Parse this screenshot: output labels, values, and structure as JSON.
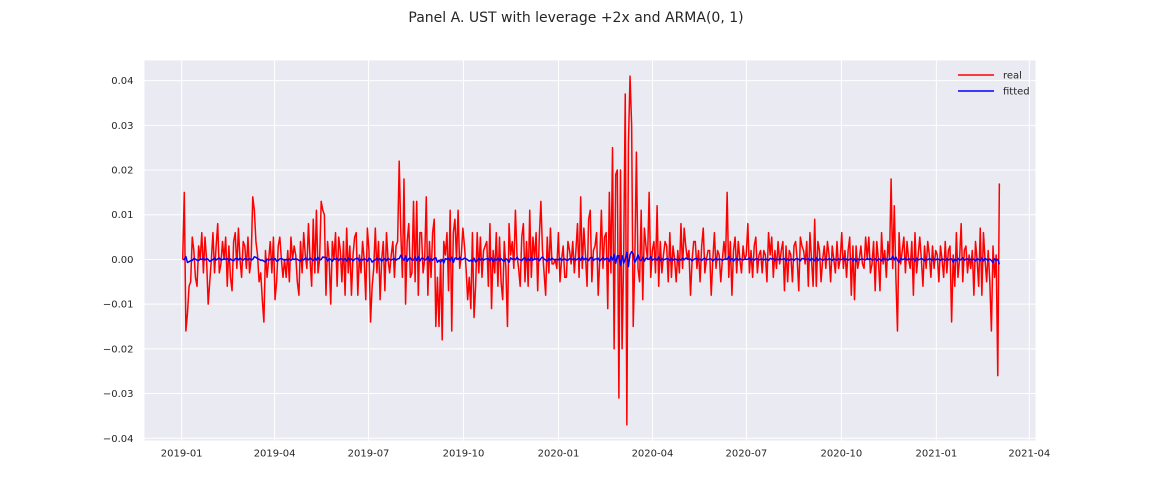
{
  "chart_data": {
    "type": "line",
    "title": "Panel A. UST with leverage +2x and ARMA(0, 1)",
    "xlabel": "",
    "ylabel": "",
    "x_ticks": [
      "2019-01",
      "2019-04",
      "2019-07",
      "2019-10",
      "2020-01",
      "2020-04",
      "2020-07",
      "2020-10",
      "2021-01",
      "2021-04"
    ],
    "y_ticks": [
      "0.04",
      "0.03",
      "0.02",
      "0.01",
      "0.00",
      "−0.01",
      "−0.02",
      "−0.03",
      "−0.04"
    ],
    "xlim": [
      "2018-11-26",
      "2021-04-07"
    ],
    "ylim": [
      -0.0405,
      0.0445
    ],
    "grid": true,
    "background": "#eaeaf2",
    "legend_position": "top-right",
    "date_range": [
      "2019-01-02",
      "2021-03-03"
    ],
    "series": [
      {
        "name": "real",
        "color": "#ff0000",
        "values": [
          0.0,
          0.015,
          -0.016,
          -0.012,
          -0.006,
          -0.005,
          0.005,
          0.002,
          -0.004,
          -0.006,
          0.003,
          0.0,
          0.006,
          -0.003,
          0.005,
          0.0,
          -0.01,
          -0.005,
          0.0,
          0.006,
          -0.003,
          0.003,
          0.008,
          -0.003,
          -0.001,
          0.004,
          0.0,
          0.005,
          -0.006,
          0.003,
          -0.004,
          -0.007,
          0.004,
          0.006,
          -0.002,
          0.007,
          0.0,
          -0.004,
          0.004,
          0.003,
          -0.002,
          0.005,
          -0.003,
          0.0,
          0.014,
          0.011,
          0.004,
          0.001,
          -0.005,
          -0.003,
          -0.009,
          -0.014,
          0.002,
          -0.004,
          0.0,
          0.004,
          -0.003,
          0.005,
          -0.009,
          -0.005,
          0.003,
          0.005,
          0.0,
          -0.004,
          0.0,
          -0.004,
          0.002,
          -0.005,
          0.005,
          0.0,
          0.003,
          0.001,
          -0.005,
          -0.008,
          0.004,
          -0.003,
          0.006,
          0.001,
          -0.002,
          0.008,
          0.0,
          -0.006,
          0.009,
          -0.003,
          0.011,
          -0.003,
          0.0,
          0.013,
          0.011,
          0.01,
          -0.008,
          0.004,
          0.0,
          -0.01,
          0.004,
          0.0,
          0.006,
          -0.006,
          0.005,
          0.002,
          -0.005,
          0.004,
          -0.008,
          0.007,
          -0.003,
          0.003,
          -0.008,
          0.001,
          0.005,
          0.006,
          -0.008,
          0.001,
          -0.003,
          0.004,
          0.0,
          -0.009,
          0.007,
          0.002,
          -0.014,
          -0.006,
          -0.002,
          0.007,
          -0.003,
          0.004,
          -0.009,
          0.0,
          0.004,
          -0.007,
          0.006,
          0.0,
          -0.003,
          0.001,
          0.004,
          -0.004,
          0.003,
          0.004,
          0.022,
          0.006,
          -0.004,
          0.018,
          -0.01,
          0.004,
          0.008,
          -0.004,
          -0.003,
          0.013,
          -0.005,
          0.013,
          -0.008,
          0.006,
          0.006,
          -0.003,
          0.0,
          0.014,
          -0.008,
          0.004,
          -0.004,
          0.006,
          0.009,
          -0.015,
          -0.004,
          -0.015,
          0.0,
          -0.018,
          0.004,
          0.001,
          0.006,
          -0.007,
          0.011,
          -0.016,
          0.006,
          0.009,
          0.0,
          0.011,
          -0.002,
          0.001,
          0.007,
          0.003,
          -0.002,
          -0.009,
          -0.004,
          -0.011,
          0.006,
          -0.013,
          -0.006,
          0.006,
          -0.003,
          0.005,
          -0.004,
          0.002,
          0.003,
          0.004,
          -0.006,
          0.008,
          -0.011,
          0.002,
          -0.003,
          0.006,
          -0.006,
          0.005,
          -0.005,
          -0.009,
          0.004,
          -0.002,
          -0.015,
          0.008,
          0.001,
          0.004,
          -0.002,
          0.011,
          0.001,
          -0.002,
          -0.006,
          0.005,
          0.008,
          -0.005,
          0.004,
          -0.006,
          0.011,
          -0.004,
          0.005,
          0.0,
          0.006,
          -0.007,
          0.005,
          0.013,
          0.002,
          -0.003,
          -0.008,
          0.005,
          -0.003,
          0.007,
          -0.001,
          -0.001,
          0.0,
          -0.002,
          0.006,
          -0.005,
          0.0,
          0.003,
          -0.004,
          -0.004,
          0.004,
          0.002,
          -0.001,
          0.004,
          -0.003,
          0.002,
          0.008,
          -0.004,
          0.014,
          -0.002,
          0.007,
          0.001,
          -0.006,
          0.009,
          0.011,
          -0.005,
          0.002,
          0.003,
          0.006,
          -0.008,
          0.0,
          0.011,
          -0.002,
          0.005,
          0.006,
          -0.011,
          0.015,
          -0.003,
          0.025,
          -0.02,
          0.019,
          0.02,
          -0.031,
          0.02,
          -0.02,
          0.001,
          0.037,
          -0.037,
          0.026,
          0.041,
          0.03,
          -0.015,
          0.0,
          0.024,
          -0.002,
          -0.005,
          0.011,
          -0.009,
          0.007,
          0.003,
          0.0,
          0.015,
          -0.004,
          0.002,
          0.004,
          -0.003,
          0.012,
          -0.006,
          0.004,
          -0.003,
          0.001,
          0.004,
          0.003,
          -0.005,
          0.006,
          -0.004,
          0.003,
          0.0,
          -0.005,
          0.002,
          -0.003,
          0.008,
          -0.002,
          0.007,
          0.003,
          0.0,
          0.002,
          -0.008,
          0.0,
          0.004,
          0.004,
          -0.002,
          0.002,
          -0.005,
          0.003,
          0.007,
          -0.003,
          0.0,
          0.002,
          0.002,
          -0.008,
          0.0,
          0.006,
          -0.002,
          0.002,
          0.001,
          -0.005,
          0.0,
          0.004,
          0.0,
          0.015,
          -0.004,
          0.004,
          -0.008,
          0.002,
          0.005,
          -0.003,
          0.004,
          0.0,
          -0.003,
          0.003,
          0.0,
          0.001,
          0.008,
          -0.003,
          0.002,
          -0.004,
          0.003,
          0.005,
          -0.003,
          0.001,
          0.002,
          -0.003,
          0.002,
          0.001,
          -0.005,
          0.006,
          0.001,
          0.005,
          -0.004,
          0.002,
          -0.002,
          0.004,
          -0.001,
          0.002,
          0.004,
          -0.007,
          0.003,
          -0.005,
          0.002,
          0.001,
          -0.005,
          0.003,
          0.004,
          0.0,
          -0.007,
          0.005,
          0.003,
          0.002,
          -0.001,
          0.004,
          -0.006,
          0.006,
          0.0,
          -0.006,
          0.009,
          -0.006,
          0.004,
          0.002,
          -0.005,
          0.0,
          0.003,
          -0.002,
          0.004,
          0.001,
          -0.005,
          0.003,
          0.0,
          -0.003,
          0.004,
          -0.002,
          0.0,
          0.006,
          -0.002,
          0.002,
          -0.004,
          0.002,
          0.005,
          -0.008,
          0.003,
          -0.009,
          0.003,
          -0.002,
          0.0,
          0.003,
          -0.001,
          -0.002,
          0.005,
          0.0,
          0.005,
          -0.003,
          -0.001,
          0.004,
          -0.007,
          0.004,
          0.0,
          -0.007,
          0.006,
          -0.001,
          0.002,
          -0.004,
          0.004,
          0.0,
          0.018,
          -0.002,
          0.012,
          -0.004,
          -0.016,
          0.006,
          -0.001,
          0.002,
          0.005,
          -0.003,
          0.004,
          0.0,
          -0.002,
          0.004,
          -0.008,
          0.006,
          -0.003,
          0.001,
          0.005,
          0.0,
          -0.006,
          0.003,
          -0.002,
          0.004,
          0.001,
          -0.004,
          0.003,
          -0.002,
          0.002,
          0.001,
          -0.005,
          0.003,
          0.0,
          -0.004,
          0.004,
          -0.003,
          0.002,
          0.003,
          -0.014,
          0.001,
          -0.006,
          0.006,
          -0.004,
          0.0,
          0.008,
          -0.005,
          0.002,
          0.003,
          -0.003,
          0.001,
          -0.002,
          0.002,
          -0.008,
          0.004,
          0.0,
          -0.006,
          0.007,
          -0.008,
          0.006,
          0.0,
          -0.005,
          0.002,
          -0.005,
          -0.016,
          0.003,
          -0.004,
          0.001,
          -0.026,
          0.017
        ]
      },
      {
        "name": "fitted",
        "color": "#0000ff"
      }
    ]
  }
}
